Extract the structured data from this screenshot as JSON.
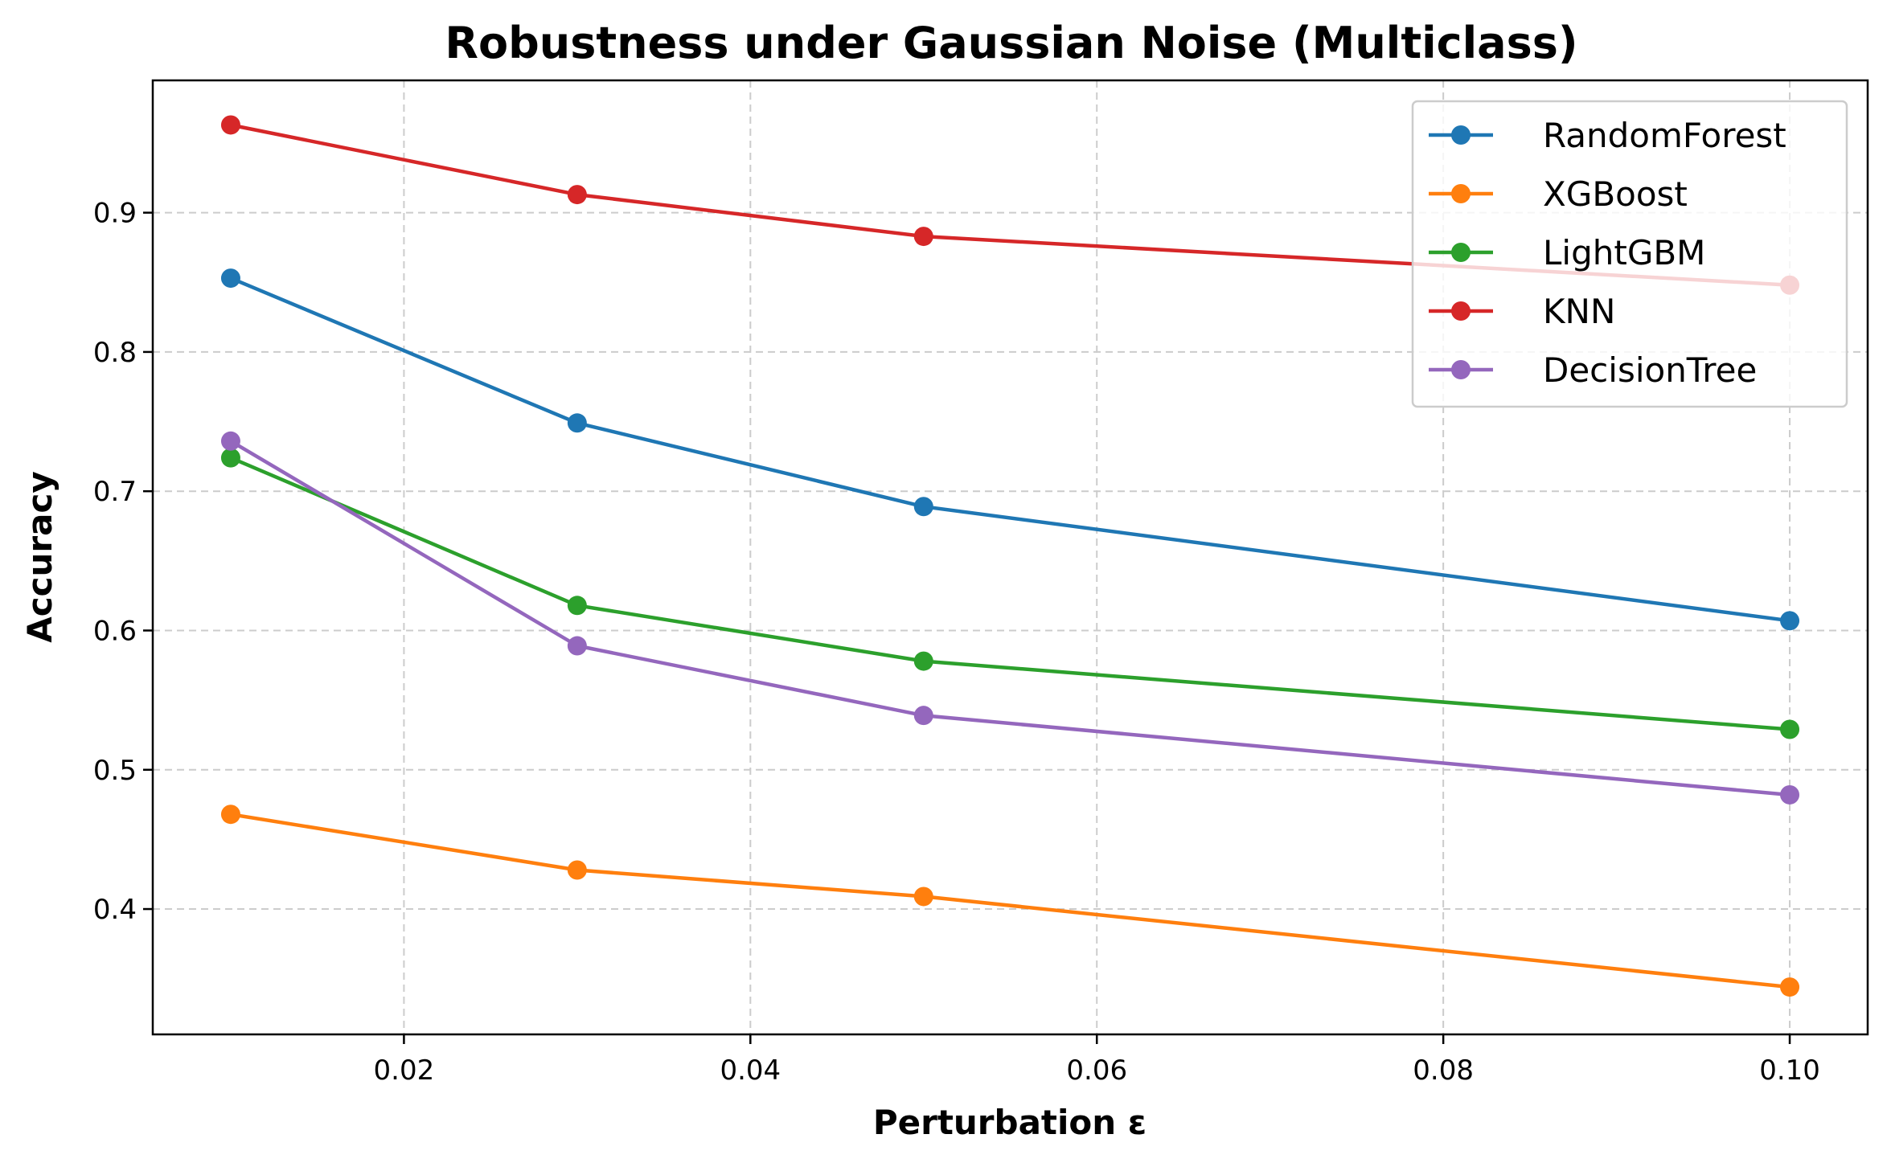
{
  "chart_data": {
    "type": "line",
    "title": "Robustness under Gaussian Noise (Multiclass)",
    "xlabel": "Perturbation ε",
    "ylabel": "Accuracy",
    "x": [
      0.01,
      0.03,
      0.05,
      0.1
    ],
    "xlim": [
      0.0055,
      0.1045
    ],
    "ylim": [
      0.31,
      0.995
    ],
    "xticks": [
      0.02,
      0.04,
      0.06,
      0.08,
      0.1
    ],
    "xtick_labels": [
      "0.02",
      "0.04",
      "0.06",
      "0.08",
      "0.10"
    ],
    "yticks": [
      0.4,
      0.5,
      0.6,
      0.7,
      0.8,
      0.9
    ],
    "ytick_labels": [
      "0.4",
      "0.5",
      "0.6",
      "0.7",
      "0.8",
      "0.9"
    ],
    "grid": true,
    "legend_position": "top-right",
    "series": [
      {
        "name": "RandomForest",
        "color": "#1f77b4",
        "values": [
          0.853,
          0.749,
          0.689,
          0.607
        ]
      },
      {
        "name": "XGBoost",
        "color": "#ff7f0e",
        "values": [
          0.468,
          0.428,
          0.409,
          0.344
        ]
      },
      {
        "name": "LightGBM",
        "color": "#2ca02c",
        "values": [
          0.724,
          0.618,
          0.578,
          0.529
        ]
      },
      {
        "name": "KNN",
        "color": "#d62728",
        "values": [
          0.963,
          0.913,
          0.883,
          0.848
        ]
      },
      {
        "name": "DecisionTree",
        "color": "#9467bd",
        "values": [
          0.736,
          0.589,
          0.539,
          0.482
        ]
      }
    ]
  }
}
